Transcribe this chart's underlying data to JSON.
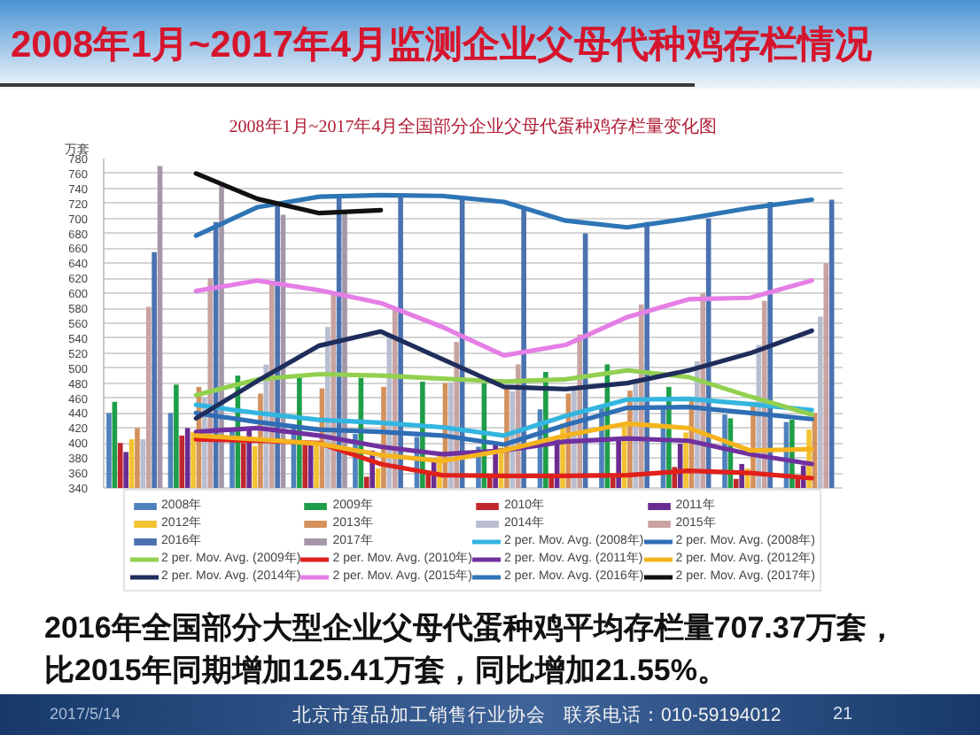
{
  "chart_data": {
    "type": "bar",
    "title": "2008年1月~2017年4月监测企业父母代种鸡存栏情况",
    "subtitle": "2008年1月~2017年4月全国部分企业父母代蛋种鸡存栏量变化图",
    "ylabel": "万套",
    "categories": [
      null,
      null,
      null,
      null,
      null,
      null,
      null,
      null,
      null,
      null,
      null,
      null
    ],
    "ylim": [
      340,
      780
    ],
    "yticks": [
      340,
      360,
      380,
      400,
      420,
      440,
      460,
      480,
      500,
      520,
      540,
      560,
      580,
      600,
      620,
      640,
      660,
      680,
      700,
      720,
      740,
      760,
      780
    ],
    "grid": "y",
    "legend": "bottom",
    "tick_labels": "y",
    "series": [
      {
        "name": "2008年",
        "color": "#4f81bd",
        "values": [
          440,
          440,
          416,
          420,
          412,
          408,
          395,
          445,
          450,
          446,
          438,
          428
        ]
      },
      {
        "name": "2009年",
        "color": "#1e9e48",
        "values": [
          455,
          478,
          490,
          488,
          487,
          482,
          480,
          495,
          505,
          475,
          433,
          431
        ]
      },
      {
        "name": "2010年",
        "color": "#c0262b",
        "values": [
          400,
          410,
          400,
          398,
          355,
          358,
          355,
          357,
          357,
          368,
          352,
          355
        ]
      },
      {
        "name": "2011年",
        "color": "#6a2c91",
        "values": [
          388,
          420,
          418,
          402,
          390,
          380,
          398,
          405,
          407,
          399,
          372,
          370
        ]
      },
      {
        "name": "2012年",
        "color": "#f2c230",
        "values": [
          405,
          415,
          396,
          402,
          366,
          386,
          394,
          426,
          426,
          414,
          366,
          418
        ]
      },
      {
        "name": "2013年",
        "color": "#d4915c",
        "values": [
          420,
          475,
          466,
          473,
          475,
          480,
          475,
          466,
          470,
          460,
          455,
          440
        ]
      },
      {
        "name": "2014年",
        "color": "#b8bdd0",
        "values": [
          405,
          461,
          505,
          555,
          543,
          481,
          469,
          475,
          485,
          509,
          531,
          569
        ]
      },
      {
        "name": "2015年",
        "color": "#c9a3a0",
        "values": [
          582,
          620,
          612,
          598,
          578,
          535,
          505,
          545,
          585,
          600,
          590,
          640
        ]
      },
      {
        "name": "2016年",
        "color": "#4a72b0",
        "values": [
          655,
          695,
          720,
          730,
          730,
          728,
          712,
          680,
          695,
          700,
          722,
          725
        ]
      },
      {
        "name": "2017年",
        "color": "#a597a8",
        "values": [
          770,
          748,
          705,
          710,
          null,
          null,
          null,
          null,
          null,
          null,
          null,
          null
        ]
      },
      {
        "name": "2 per. Mov. Avg. (2008年)",
        "type": "line",
        "color": "#33b5e0",
        "values": [
          null,
          451,
          440,
          431,
          427,
          421,
          410,
          436,
          458,
          459,
          452,
          444
        ]
      },
      {
        "name": "2 per. Mov. Avg. (2008年)",
        "type": "line",
        "color": "#2f6eb5",
        "values": [
          null,
          440,
          428,
          418,
          415,
          410,
          398,
          424,
          447,
          448,
          440,
          432
        ]
      },
      {
        "name": "2 per. Mov. Avg. (2009年)",
        "type": "line",
        "color": "#92d050",
        "values": [
          null,
          464,
          485,
          492,
          490,
          486,
          482,
          485,
          497,
          488,
          462,
          438
        ]
      },
      {
        "name": "2 per. Mov. Avg. (2010年)",
        "type": "line",
        "color": "#e0201b",
        "values": [
          null,
          405,
          403,
          400,
          372,
          357,
          356,
          356,
          357,
          363,
          360,
          353
        ]
      },
      {
        "name": "2 per. Mov. Avg. (2011年)",
        "type": "line",
        "color": "#7030a0",
        "values": [
          null,
          415,
          420,
          410,
          395,
          385,
          390,
          402,
          406,
          403,
          385,
          372
        ]
      },
      {
        "name": "2 per. Mov. Avg. (2012年)",
        "type": "line",
        "color": "#f5b41e",
        "values": [
          null,
          410,
          405,
          399,
          384,
          376,
          390,
          410,
          426,
          420,
          390,
          392
        ]
      },
      {
        "name": "2 per. Mov. Avg. (2014年)",
        "type": "line",
        "color": "#1f2d5c",
        "values": [
          null,
          433,
          483,
          530,
          549,
          512,
          475,
          472,
          480,
          497,
          520,
          550
        ]
      },
      {
        "name": "2 per. Mov. Avg. (2015年)",
        "type": "line",
        "color": "#e57ee5",
        "values": [
          null,
          603,
          617,
          604,
          587,
          555,
          517,
          531,
          568,
          592,
          594,
          617
        ]
      },
      {
        "name": "2 per. Mov. Avg. (2016年)",
        "type": "line",
        "color": "#2e75b6",
        "values": [
          null,
          677,
          715,
          729,
          731,
          730,
          722,
          697,
          688,
          700,
          714,
          725
        ]
      },
      {
        "name": "2 per. Mov. Avg. (2017年)",
        "type": "line",
        "color": "#111111",
        "values": [
          null,
          760,
          726,
          707,
          711,
          null,
          null,
          null,
          null,
          null,
          null,
          null
        ]
      }
    ],
    "annotations": [
      "2016年全国部分大型企业父母代蛋种鸡平均存栏量707.37万套，比2015年同期增加125.41万套，同比增加21.55%。",
      "2017/5/14",
      "北京市蛋品加工销售行业协会",
      "联系电话：010-59194012",
      "21"
    ]
  }
}
